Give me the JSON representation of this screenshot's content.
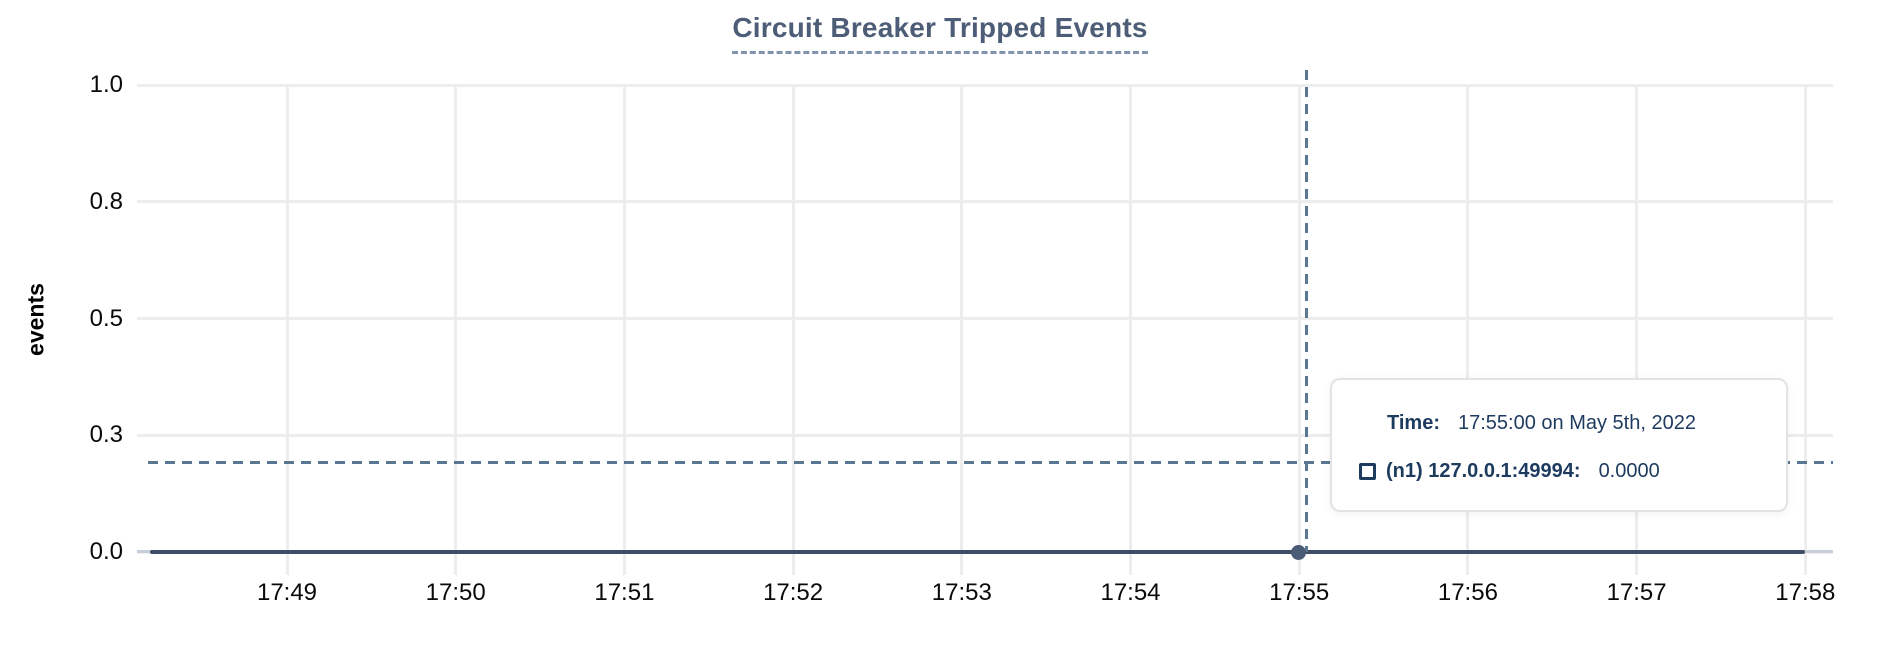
{
  "title": "Circuit Breaker Tripped Events",
  "y_axis_label": "events",
  "chart_data": {
    "type": "line",
    "title": "Circuit Breaker Tripped Events",
    "xlabel": "",
    "ylabel": "events",
    "x_ticks": [
      "17:49",
      "17:50",
      "17:51",
      "17:52",
      "17:53",
      "17:54",
      "17:55",
      "17:56",
      "17:57",
      "17:58"
    ],
    "y_ticks": [
      "0.0",
      "0.3",
      "0.5",
      "0.8",
      "1.0"
    ],
    "ylim": [
      0,
      1.0
    ],
    "grid": true,
    "legend_position": "tooltip",
    "series": [
      {
        "name": "(n1) 127.0.0.1:49994",
        "x": [
          "17:49",
          "17:50",
          "17:51",
          "17:52",
          "17:53",
          "17:54",
          "17:55",
          "17:56",
          "17:57",
          "17:58"
        ],
        "values": [
          0.0,
          0.0,
          0.0,
          0.0,
          0.0,
          0.0,
          0.0,
          0.0,
          0.0,
          0.0
        ]
      }
    ],
    "cursor": {
      "hover_x": "17:55",
      "hover_y_approx": 0.19,
      "highlighted_point": {
        "x": "17:55",
        "y": 0.0
      }
    }
  },
  "tooltip": {
    "time_label": "Time:",
    "time_value": "17:55:00 on May 5th, 2022",
    "swatch_icon": "square-outline-icon",
    "series_label": "(n1) 127.0.0.1:49994:",
    "series_value": "0.0000"
  },
  "colors": {
    "accent_text": "#1d3a5f",
    "title_text": "#4d5d77",
    "title_underline": "#8095ad",
    "series_line": "#3d4e66",
    "marker": "#4a5c75",
    "crosshair": "#5b7690",
    "gridline": "#ededed",
    "axis_line": "#c9cfd8",
    "tick_text": "#0a0a0a"
  }
}
